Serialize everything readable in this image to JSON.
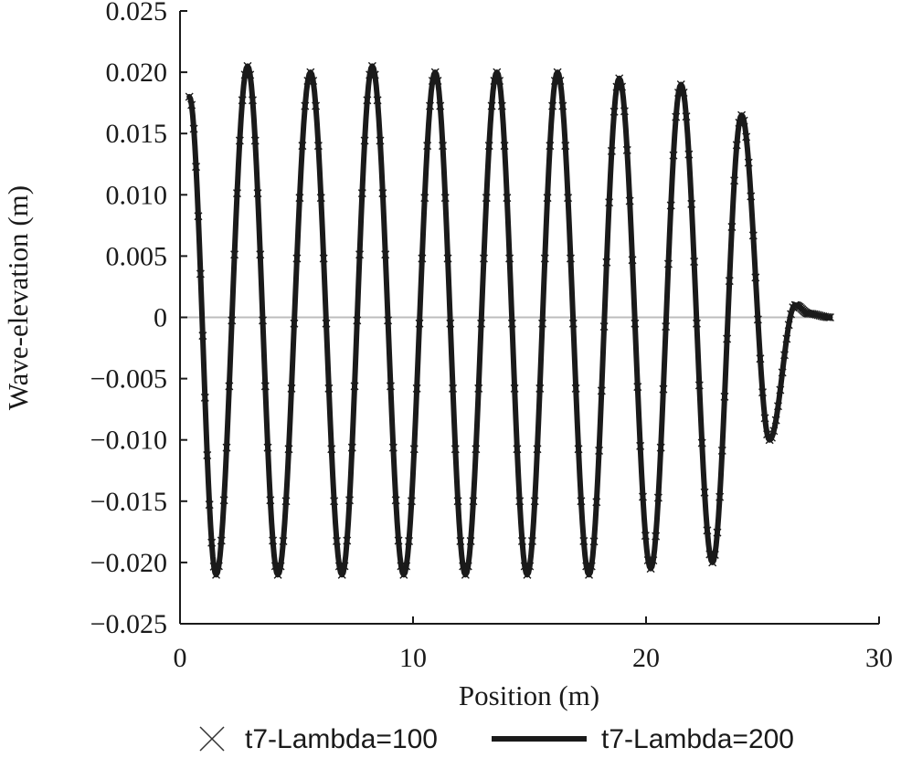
{
  "chart_data": {
    "type": "line",
    "title": "",
    "xlabel": "Position (m)",
    "ylabel": "Wave-elevation (m)",
    "xlim": [
      0,
      30
    ],
    "ylim": [
      -0.025,
      0.025
    ],
    "x_ticks": [
      "0",
      "10",
      "20",
      "30"
    ],
    "y_ticks": [
      "0.025",
      "0.020",
      "0.015",
      "0.010",
      "0.005",
      "0",
      "−0.005",
      "−0.010",
      "−0.015",
      "−0.020",
      "−0.025"
    ],
    "grid": false,
    "legend_position": "bottom",
    "series": [
      {
        "name": "t7-Lambda=100",
        "style": "x-markers",
        "color": "#1a1a1a",
        "x": [
          0.4,
          1.55,
          2.9,
          4.2,
          5.6,
          6.95,
          8.25,
          9.6,
          10.95,
          12.25,
          13.6,
          14.9,
          16.2,
          17.55,
          18.85,
          20.2,
          21.5,
          22.85,
          24.1,
          25.3,
          26.4,
          27.0,
          27.9
        ],
        "y": [
          0.018,
          -0.021,
          0.0205,
          -0.021,
          0.02,
          -0.021,
          0.0205,
          -0.021,
          0.02,
          -0.021,
          0.02,
          -0.021,
          0.02,
          -0.021,
          0.0195,
          -0.0205,
          0.019,
          -0.02,
          0.0165,
          -0.01,
          0.001,
          0.0003,
          0.0
        ]
      },
      {
        "name": "t7-Lambda=200",
        "style": "solid",
        "color": "#1a1a1a",
        "x": [
          0.4,
          1.55,
          2.9,
          4.2,
          5.6,
          6.95,
          8.25,
          9.6,
          10.95,
          12.25,
          13.6,
          14.9,
          16.2,
          17.55,
          18.85,
          20.2,
          21.5,
          22.85,
          24.1,
          25.3,
          26.4,
          27.0,
          27.9
        ],
        "y": [
          0.018,
          -0.021,
          0.0205,
          -0.021,
          0.02,
          -0.021,
          0.0205,
          -0.021,
          0.02,
          -0.021,
          0.02,
          -0.021,
          0.02,
          -0.021,
          0.0195,
          -0.0205,
          0.019,
          -0.02,
          0.0165,
          -0.01,
          0.001,
          0.0003,
          0.0
        ]
      }
    ]
  }
}
